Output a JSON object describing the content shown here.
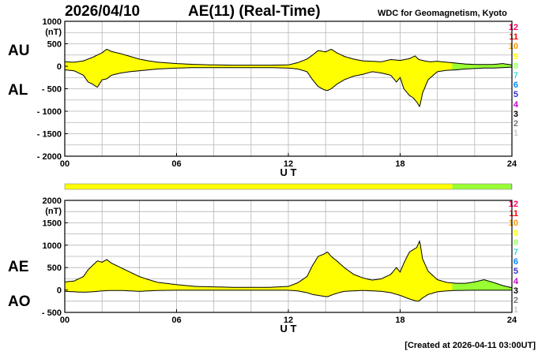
{
  "header": {
    "date": "2026/04/10",
    "title": "AE(11) (Real-Time)",
    "org": "WDC for Geomagnetism, Kyoto"
  },
  "footer": {
    "created": "[Created at 2026-04-11 03:00UT]"
  },
  "colors": {
    "yellow": "#ffff00",
    "green": "#99ff33",
    "cyan": "#00e0e0",
    "curve": "#000000",
    "grid": "#b4b4b4"
  },
  "station_levels": [
    {
      "label": "12",
      "color": "#ff0066"
    },
    {
      "label": "11",
      "color": "#ff0000"
    },
    {
      "label": "10",
      "color": "#ff9900"
    },
    {
      "label": "9",
      "color": "#ffff00"
    },
    {
      "label": "8",
      "color": "#99ff66"
    },
    {
      "label": "7",
      "color": "#33dddd"
    },
    {
      "label": "6",
      "color": "#0088ff"
    },
    {
      "label": "5",
      "color": "#3333cc"
    },
    {
      "label": "4",
      "color": "#cc00cc"
    },
    {
      "label": "3",
      "color": "#000000"
    },
    {
      "label": "2",
      "color": "#777777"
    },
    {
      "label": "1",
      "color": "#cccccc"
    }
  ],
  "coverage_bar": [
    {
      "from": 0,
      "to": 20.8,
      "color": "#ffff00"
    },
    {
      "from": 20.8,
      "to": 23.95,
      "color": "#99ff33"
    },
    {
      "from": 23.95,
      "to": 24,
      "color": "#00e0e0"
    }
  ],
  "chart_data": [
    {
      "type": "area",
      "name": "AU/AL",
      "labels": {
        "upper": "AU",
        "lower": "AL"
      },
      "unit": "(nT)",
      "xlabel": "U T",
      "x_ticks": [
        "00",
        "06",
        "12",
        "18",
        "24"
      ],
      "y_ticks": [
        "1000",
        "500",
        "0",
        "- 500",
        "- 1000",
        "- 1500",
        "- 2000"
      ],
      "xlim": [
        0,
        24
      ],
      "ylim": [
        -2000,
        1000
      ],
      "green_from_hour": 20.8,
      "upper_series": {
        "name": "AU",
        "x": [
          0,
          0.5,
          1,
          1.5,
          2,
          2.25,
          2.5,
          3,
          3.5,
          4,
          4.5,
          5,
          6,
          7,
          8,
          9,
          10,
          11,
          12,
          12.5,
          13,
          13.3,
          13.6,
          14,
          14.3,
          14.6,
          15,
          15.5,
          16,
          16.5,
          17,
          17.5,
          18,
          18.5,
          18.8,
          19,
          19.3,
          19.6,
          20,
          20.5,
          21,
          21.5,
          22,
          22.5,
          23,
          23.5,
          24
        ],
        "y": [
          100,
          90,
          120,
          200,
          300,
          380,
          330,
          280,
          220,
          160,
          120,
          90,
          60,
          40,
          30,
          25,
          25,
          25,
          30,
          80,
          160,
          250,
          350,
          320,
          380,
          300,
          220,
          160,
          120,
          110,
          100,
          150,
          130,
          170,
          230,
          150,
          120,
          100,
          110,
          90,
          70,
          50,
          40,
          40,
          40,
          60,
          30
        ]
      },
      "lower_series": {
        "name": "AL",
        "x": [
          0,
          0.5,
          1,
          1.25,
          1.5,
          1.75,
          2,
          2.25,
          2.5,
          3,
          3.5,
          4,
          4.5,
          5,
          6,
          7,
          8,
          9,
          10,
          11,
          12,
          12.5,
          13,
          13.3,
          13.6,
          13.9,
          14.1,
          14.3,
          14.6,
          15,
          15.5,
          16,
          16.5,
          17,
          17.5,
          17.8,
          18,
          18.2,
          18.5,
          18.7,
          18.9,
          19.05,
          19.2,
          19.5,
          20,
          20.5,
          21,
          21.5,
          22,
          22.5,
          23,
          23.5,
          24
        ],
        "y": [
          -80,
          -100,
          -200,
          -350,
          -400,
          -470,
          -300,
          -280,
          -200,
          -150,
          -120,
          -100,
          -80,
          -60,
          -40,
          -30,
          -30,
          -30,
          -30,
          -30,
          -40,
          -60,
          -120,
          -300,
          -450,
          -520,
          -540,
          -500,
          -400,
          -300,
          -220,
          -180,
          -120,
          -150,
          -200,
          -350,
          -250,
          -500,
          -650,
          -700,
          -800,
          -900,
          -600,
          -300,
          -120,
          -90,
          -80,
          -60,
          -50,
          -40,
          -40,
          -30,
          -20
        ]
      }
    },
    {
      "type": "area",
      "name": "AE/AO",
      "labels": {
        "upper": "AE",
        "lower": "AO"
      },
      "unit": "(nT)",
      "xlabel": "U T",
      "x_ticks": [
        "00",
        "06",
        "12",
        "18",
        "24"
      ],
      "y_ticks": [
        "2000",
        "1500",
        "1000",
        "500",
        "0",
        "- 500"
      ],
      "xlim": [
        0,
        24
      ],
      "ylim": [
        -500,
        2000
      ],
      "green_from_hour": 20.8,
      "upper_series": {
        "name": "AE",
        "x": [
          0,
          0.5,
          1,
          1.25,
          1.5,
          1.75,
          2,
          2.25,
          2.5,
          3,
          3.5,
          4,
          4.5,
          5,
          6,
          7,
          8,
          9,
          10,
          11,
          12,
          12.5,
          13,
          13.3,
          13.6,
          13.9,
          14.1,
          14.3,
          14.6,
          15,
          15.5,
          16,
          16.5,
          17,
          17.5,
          17.8,
          18,
          18.2,
          18.5,
          18.7,
          18.9,
          19.05,
          19.2,
          19.5,
          20,
          20.5,
          21,
          21.5,
          22,
          22.5,
          23,
          23.5,
          24
        ],
        "y": [
          180,
          200,
          300,
          450,
          550,
          650,
          620,
          680,
          600,
          500,
          400,
          300,
          230,
          170,
          120,
          80,
          70,
          60,
          60,
          60,
          80,
          160,
          300,
          550,
          750,
          800,
          850,
          750,
          650,
          500,
          350,
          270,
          220,
          250,
          350,
          500,
          400,
          600,
          850,
          900,
          950,
          1100,
          700,
          420,
          230,
          170,
          150,
          150,
          180,
          230,
          170,
          100,
          50
        ]
      },
      "lower_series": {
        "name": "AO",
        "x": [
          0,
          0.5,
          1,
          1.5,
          2,
          2.5,
          3,
          3.5,
          4,
          5,
          6,
          8,
          10,
          12,
          12.5,
          13,
          13.3,
          13.6,
          13.9,
          14.1,
          14.4,
          14.7,
          15,
          15.5,
          16,
          17,
          17.5,
          18,
          18.5,
          18.8,
          19,
          19.2,
          19.5,
          20,
          20.5,
          21,
          22,
          23,
          24
        ],
        "y": [
          -30,
          -40,
          -50,
          -40,
          -20,
          -10,
          -10,
          -20,
          -30,
          -10,
          -5,
          -5,
          -5,
          -5,
          -20,
          -60,
          -100,
          -120,
          -140,
          -150,
          -100,
          -60,
          -30,
          -20,
          -10,
          -30,
          -60,
          -120,
          -200,
          -240,
          -250,
          -180,
          -100,
          -40,
          -20,
          -10,
          -5,
          -5,
          -5
        ]
      }
    }
  ]
}
